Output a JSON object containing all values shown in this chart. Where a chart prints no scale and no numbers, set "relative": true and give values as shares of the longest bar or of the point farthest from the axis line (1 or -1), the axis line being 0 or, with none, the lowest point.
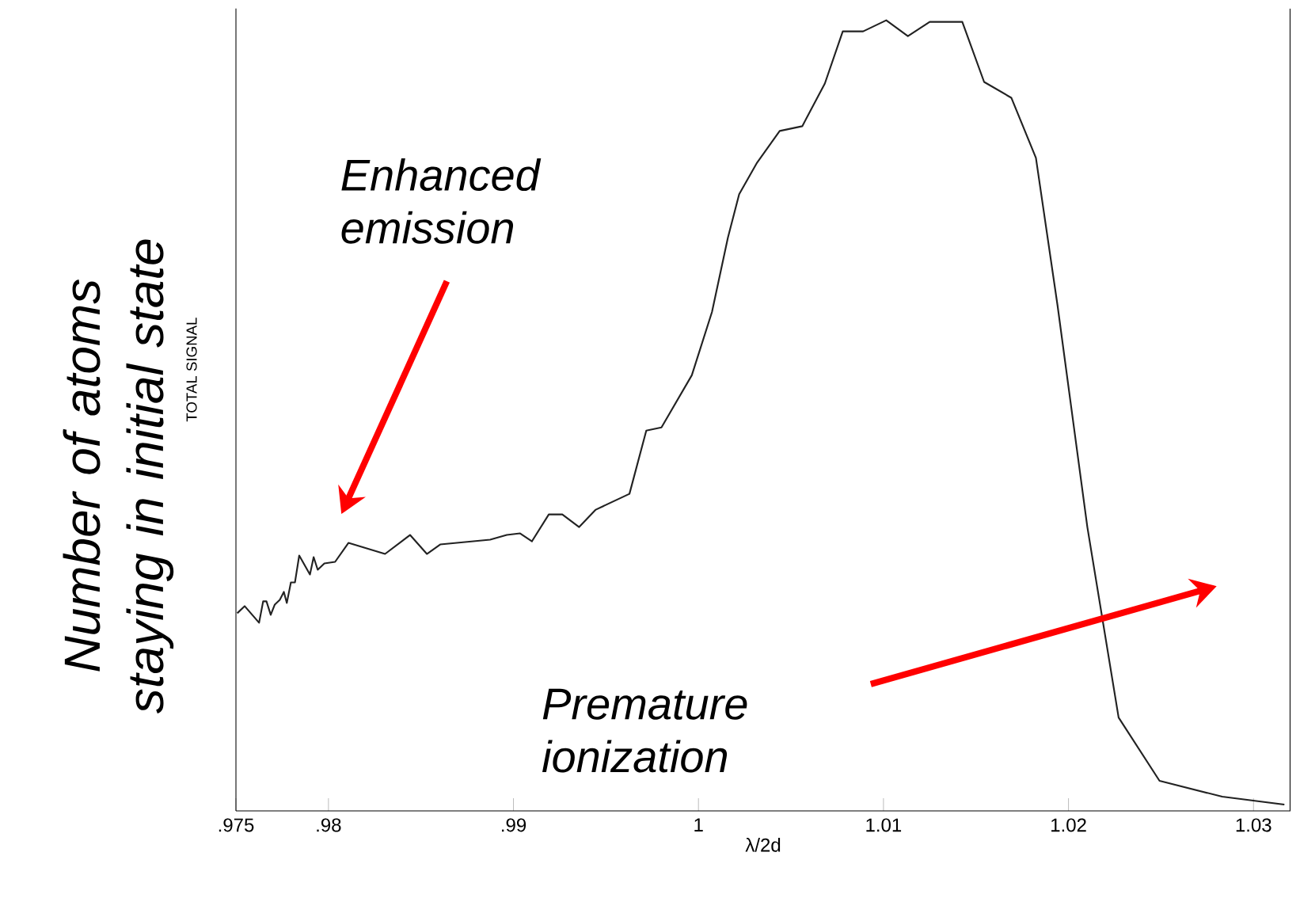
{
  "chart_data": {
    "type": "line",
    "relative": true,
    "xlabel": "λ/2d",
    "ylabel": "TOTAL SIGNAL",
    "annotations": [
      "Number of atoms staying in initial state",
      "Enhanced emission",
      "Premature ionization"
    ],
    "xlim": [
      0.975,
      1.032
    ],
    "xticks": [
      {
        "value": 0.975,
        "label": ".975"
      },
      {
        "value": 0.98,
        "label": ".98"
      },
      {
        "value": 0.99,
        "label": ".99"
      },
      1,
      1.01,
      1.02,
      1.03
    ],
    "x": [
      0.97507,
      0.97547,
      0.97625,
      0.97647,
      0.97665,
      0.97688,
      0.9771,
      0.97737,
      0.97759,
      0.97775,
      0.97797,
      0.97819,
      0.97842,
      0.979,
      0.9792,
      0.97942,
      0.97978,
      0.98036,
      0.98108,
      0.98306,
      0.98441,
      0.98532,
      0.98604,
      0.98874,
      0.98964,
      0.99036,
      0.991,
      0.99191,
      0.99264,
      0.99355,
      0.99445,
      0.99627,
      0.99718,
      0.998,
      0.99964,
      1.00073,
      1.00159,
      1.0022,
      1.00317,
      1.00439,
      1.00561,
      1.00683,
      1.0078,
      1.0089,
      1.01015,
      1.01132,
      1.0125,
      1.01426,
      1.01544,
      1.01691,
      1.01824,
      1.01941,
      1.02102,
      1.02271,
      1.02492,
      1.02831,
      1.03167
    ],
    "series": [
      {
        "color": "#222222",
        "values": [
          0.25,
          0.259,
          0.238,
          0.265,
          0.265,
          0.248,
          0.261,
          0.267,
          0.277,
          0.263,
          0.289,
          0.289,
          0.323,
          0.299,
          0.321,
          0.305,
          0.313,
          0.315,
          0.339,
          0.325,
          0.349,
          0.325,
          0.337,
          0.343,
          0.349,
          0.351,
          0.341,
          0.375,
          0.375,
          0.359,
          0.381,
          0.401,
          0.481,
          0.485,
          0.551,
          0.631,
          0.725,
          0.78,
          0.82,
          0.86,
          0.866,
          0.92,
          0.986,
          0.986,
          1,
          0.98,
          0.998,
          0.998,
          0.922,
          0.902,
          0.826,
          0.639,
          0.359,
          0.118,
          0.038,
          0.018,
          0.008
        ]
      }
    ],
    "grid": false,
    "marker": "none",
    "line_style": "solid"
  }
}
